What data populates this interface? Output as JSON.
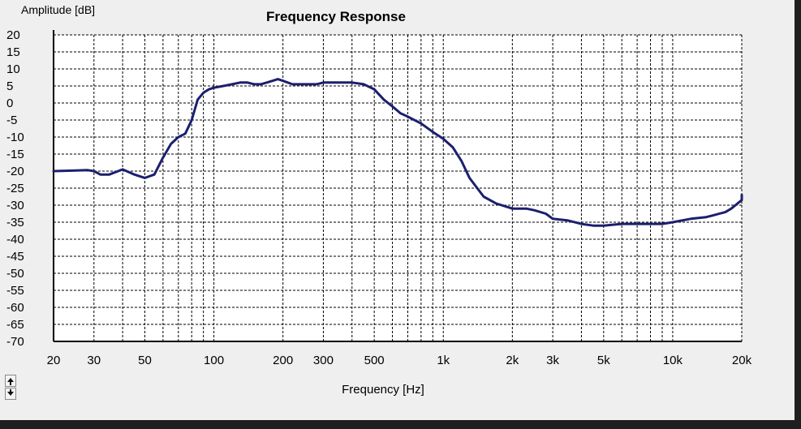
{
  "chart_data": {
    "type": "line",
    "title": "Frequency Response",
    "xlabel": "Frequency [Hz]",
    "ylabel": "Amplitude [dB]",
    "x_scale": "log",
    "xlim": [
      20,
      20000
    ],
    "ylim": [
      -70,
      20
    ],
    "grid": true,
    "x_ticks": [
      {
        "value": 20,
        "label": "20"
      },
      {
        "value": 30,
        "label": "30"
      },
      {
        "value": 50,
        "label": "50"
      },
      {
        "value": 100,
        "label": "100"
      },
      {
        "value": 200,
        "label": "200"
      },
      {
        "value": 300,
        "label": "300"
      },
      {
        "value": 500,
        "label": "500"
      },
      {
        "value": 1000,
        "label": "1k"
      },
      {
        "value": 2000,
        "label": "2k"
      },
      {
        "value": 3000,
        "label": "3k"
      },
      {
        "value": 5000,
        "label": "5k"
      },
      {
        "value": 10000,
        "label": "10k"
      },
      {
        "value": 20000,
        "label": "20k"
      }
    ],
    "y_ticks": [
      20,
      15,
      10,
      5,
      0,
      -5,
      -10,
      -15,
      -20,
      -25,
      -30,
      -35,
      -40,
      -45,
      -50,
      -55,
      -60,
      -65,
      -70
    ],
    "series": [
      {
        "color": "#1c1f6e",
        "x": [
          20,
          25,
          28,
          30,
          32,
          35,
          40,
          45,
          50,
          55,
          60,
          65,
          70,
          75,
          80,
          85,
          90,
          95,
          100,
          110,
          120,
          130,
          140,
          150,
          160,
          170,
          180,
          190,
          200,
          220,
          250,
          280,
          300,
          350,
          400,
          450,
          500,
          550,
          600,
          650,
          700,
          800,
          900,
          1000,
          1100,
          1200,
          1300,
          1500,
          1700,
          2000,
          2300,
          2500,
          2800,
          3000,
          3500,
          4000,
          4500,
          5000,
          6000,
          7000,
          8000,
          9000,
          10000,
          12000,
          14000,
          15000,
          17000,
          18000,
          20000,
          22000
        ],
        "y": [
          -20,
          -19.8,
          -19.7,
          -20,
          -21,
          -21,
          -19.5,
          -21,
          -22,
          -21,
          -16,
          -12,
          -10,
          -9,
          -5,
          1,
          3,
          4,
          4.5,
          5,
          5.5,
          6,
          6,
          5.5,
          5.5,
          6,
          6.5,
          7,
          6.5,
          5.5,
          5.5,
          5.5,
          6,
          6,
          6,
          5.5,
          4,
          1,
          -1,
          -3,
          -4,
          -6,
          -8.5,
          -10.5,
          -13,
          -17,
          -22,
          -27.5,
          -29.5,
          -31,
          -31,
          -31.5,
          -32.5,
          -34,
          -34.5,
          -35.5,
          -36,
          -36,
          -35.5,
          -35.5,
          -35.5,
          -35.5,
          -35,
          -34,
          -33.5,
          -33,
          -32,
          -31,
          -28.5,
          -27
        ]
      }
    ]
  },
  "ui": {
    "scroll_up_icon": "arrow-up-icon",
    "scroll_down_icon": "arrow-down-icon"
  }
}
